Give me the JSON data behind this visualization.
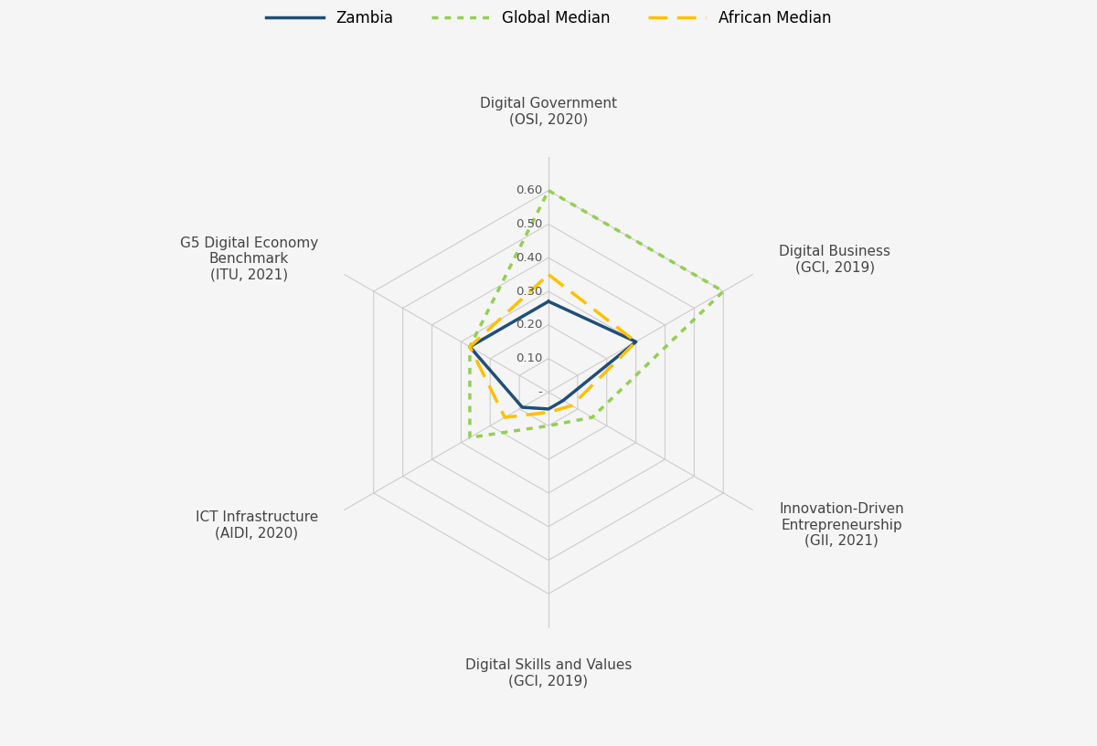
{
  "categories": [
    "Digital Government\n(OSI, 2020)",
    "Digital Business\n(GCI, 2019)",
    "Innovation-Driven\nEntrepreneurship\n(GII, 2021)",
    "Digital Skills and Values\n(GCI, 2019)",
    "ICT Infrastructure\n(AIDI, 2020)",
    "G5 Digital Economy\nBenchmark\n(ITU, 2021)"
  ],
  "series": {
    "Zambia": [
      0.27,
      0.3,
      0.05,
      0.05,
      0.09,
      0.27
    ],
    "Global Median": [
      0.6,
      0.6,
      0.15,
      0.1,
      0.27,
      0.27
    ],
    "African Median": [
      0.35,
      0.3,
      0.08,
      0.06,
      0.15,
      0.27
    ]
  },
  "colors": {
    "Zambia": "#1F4E79",
    "Global Median": "#92D050",
    "African Median": "#FFC000"
  },
  "linestyles": {
    "Zambia": "solid",
    "Global Median": "dotted",
    "African Median": "dashed"
  },
  "linewidths": {
    "Zambia": 2.5,
    "Global Median": 2.5,
    "African Median": 2.5
  },
  "r_ticks": [
    0.0,
    0.1,
    0.2,
    0.3,
    0.4,
    0.5,
    0.6
  ],
  "r_tick_labels": [
    "-",
    "0.10",
    "0.20",
    "0.30",
    "0.40",
    "0.50",
    "0.60"
  ],
  "r_max": 0.7,
  "background_color": "#f5f5f5",
  "grid_color": "#cccccc",
  "label_fontsize": 11,
  "tick_fontsize": 9.5,
  "legend_fontsize": 12
}
